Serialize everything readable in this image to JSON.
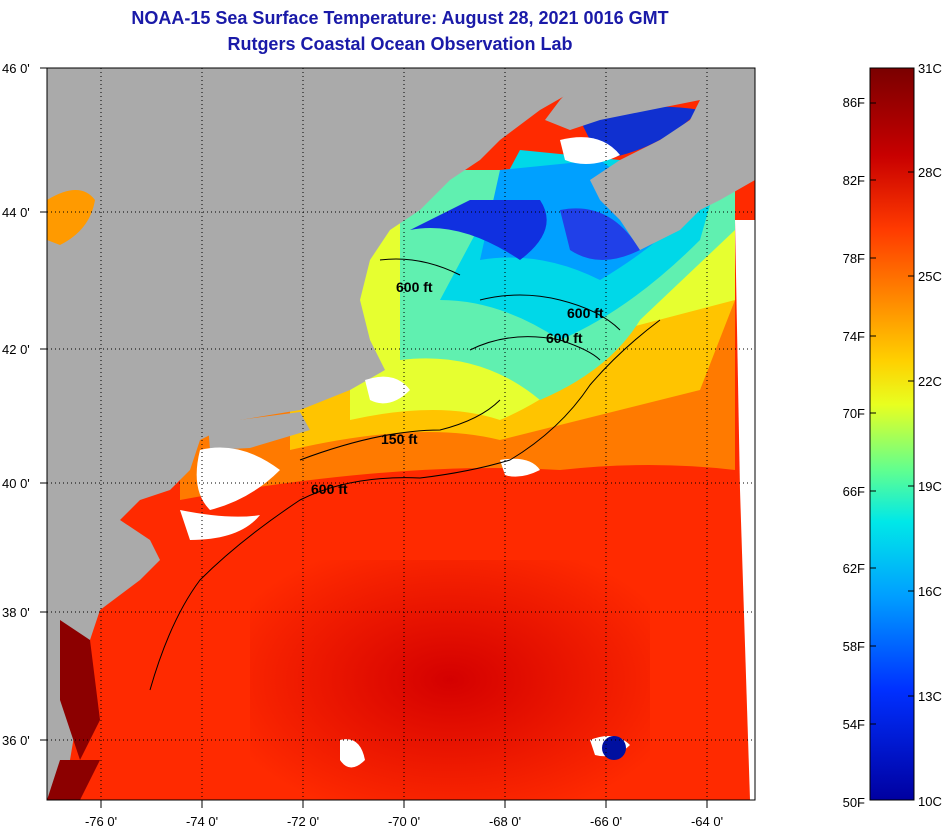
{
  "title": "NOAA-15 Sea Surface Temperature:  August 28, 2021 0016 GMT",
  "subtitle": "Rutgers Coastal Ocean Observation Lab",
  "map": {
    "lon_range": [
      -77,
      -63
    ],
    "lat_range": [
      35,
      46
    ],
    "lon_ticks": [
      "-76 0'",
      "-74 0'",
      "-72 0'",
      "-70 0'",
      "-68 0'",
      "-66 0'",
      "-64 0'"
    ],
    "lat_ticks": [
      "46 0'",
      "44 0'",
      "42 0'",
      "40 0'",
      "38 0'",
      "36 0'"
    ],
    "land_color": "#aaaaaa",
    "cloud_color": "#ffffff",
    "contour_labels": [
      "600 ft",
      "600 ft",
      "600 ft",
      "150 ft",
      "600 ft"
    ]
  },
  "colorbar": {
    "fahrenheit_labels": [
      "86F",
      "82F",
      "78F",
      "74F",
      "70F",
      "66F",
      "62F",
      "58F",
      "54F",
      "50F"
    ],
    "celsius_labels": [
      "31C",
      "28C",
      "25C",
      "22C",
      "19C",
      "16C",
      "13C",
      "10C"
    ],
    "colors": [
      "#7a0000",
      "#c80000",
      "#ff3a00",
      "#ff8c00",
      "#ffd000",
      "#e8ff20",
      "#60ff90",
      "#00e8e8",
      "#00a0ff",
      "#0030ff",
      "#0000a0"
    ]
  }
}
